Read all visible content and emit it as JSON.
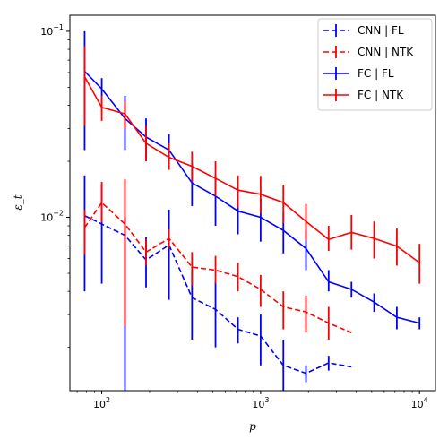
{
  "chart_data": {
    "type": "line",
    "xscale": "log",
    "yscale": "log",
    "xlabel": "p",
    "ylabel": "ε_t",
    "xlim": [
      63,
      12600
    ],
    "ylim": [
      0.00117,
      0.122
    ],
    "x_major_ticks": [
      {
        "value": 100,
        "base": "10",
        "exp": "2"
      },
      {
        "value": 1000,
        "base": "10",
        "exp": "3"
      },
      {
        "value": 10000,
        "base": "10",
        "exp": "4"
      }
    ],
    "y_major_ticks": [
      {
        "value": 0.01,
        "base": "10",
        "exp": "−2"
      },
      {
        "value": 0.1,
        "base": "10",
        "exp": "−1"
      }
    ],
    "legend_position": "top-right",
    "grid": false,
    "series": [
      {
        "name": "CNN | FL",
        "color": "#0000ff",
        "dash": true,
        "x": [
          78,
          100,
          140,
          190,
          265,
          370,
          520,
          720,
          1000,
          1390,
          1930,
          2680,
          3730
        ],
        "y": [
          0.0102,
          0.0092,
          0.008,
          0.0059,
          0.0071,
          0.0037,
          0.0032,
          0.0025,
          0.0023,
          0.0016,
          0.00145,
          0.00165,
          0.00157
        ],
        "err_lo": [
          0.004,
          0.0044,
          0.00115,
          0.0042,
          0.0036,
          0.0022,
          0.002,
          0.0021,
          0.0016,
          0.00117,
          0.0013,
          0.0015,
          null
        ],
        "err_hi": [
          0.0168,
          0.015,
          0.01,
          0.0078,
          0.011,
          0.0052,
          0.0045,
          0.0029,
          0.003,
          0.0022,
          0.0016,
          0.0018,
          null
        ]
      },
      {
        "name": "CNN | NTK",
        "color": "#ff0000",
        "dash": true,
        "x": [
          78,
          100,
          140,
          190,
          265,
          370,
          520,
          720,
          1000,
          1390,
          1930,
          2680,
          3730
        ],
        "y": [
          0.0088,
          0.012,
          0.0092,
          0.0065,
          0.0077,
          0.0054,
          0.0052,
          0.0048,
          0.0041,
          0.0033,
          0.0031,
          0.0027,
          0.0024
        ],
        "err_lo": [
          0.0063,
          0.0094,
          0.0026,
          0.0055,
          0.0068,
          0.0043,
          0.0044,
          0.004,
          0.0033,
          0.0025,
          0.0024,
          0.0022,
          null
        ],
        "err_hi": [
          0.011,
          0.0155,
          0.016,
          0.0076,
          0.0086,
          0.0065,
          0.0062,
          0.0057,
          0.0049,
          0.004,
          0.0038,
          0.0033,
          null
        ]
      },
      {
        "name": "FC | FL",
        "color": "#0000ff",
        "dash": false,
        "x": [
          78,
          100,
          140,
          190,
          265,
          370,
          520,
          720,
          1000,
          1390,
          1930,
          2680,
          3730,
          5180,
          7200,
          10000
        ],
        "y": [
          0.061,
          0.049,
          0.034,
          0.027,
          0.023,
          0.0153,
          0.013,
          0.0108,
          0.01,
          0.0085,
          0.0068,
          0.0045,
          0.0041,
          0.0035,
          0.0029,
          0.0027
        ],
        "err_lo": [
          0.023,
          0.041,
          0.023,
          0.02,
          0.018,
          0.0115,
          0.009,
          0.0081,
          0.0074,
          0.0064,
          0.0052,
          0.004,
          0.0037,
          0.0031,
          0.0025,
          0.0025
        ],
        "err_hi": [
          0.1,
          0.056,
          0.045,
          0.034,
          0.028,
          0.0195,
          0.017,
          0.0135,
          0.0126,
          0.0106,
          0.0085,
          0.0052,
          0.0045,
          0.0039,
          0.0033,
          0.0029
        ]
      },
      {
        "name": "FC | NTK",
        "color": "#ff0000",
        "dash": false,
        "x": [
          78,
          100,
          140,
          190,
          265,
          370,
          520,
          720,
          1000,
          1390,
          1930,
          2680,
          3730,
          5180,
          7200,
          10000
        ],
        "y": [
          0.057,
          0.039,
          0.036,
          0.025,
          0.021,
          0.0188,
          0.0162,
          0.014,
          0.0133,
          0.012,
          0.0095,
          0.0076,
          0.0083,
          0.0077,
          0.007,
          0.0057
        ],
        "err_lo": [
          0.031,
          0.033,
          0.03,
          0.02,
          0.018,
          0.0155,
          0.013,
          0.0113,
          0.0105,
          0.0093,
          0.0075,
          0.0066,
          0.0067,
          0.006,
          0.0055,
          0.0044
        ],
        "err_hi": [
          0.083,
          0.045,
          0.042,
          0.031,
          0.025,
          0.0225,
          0.02,
          0.0168,
          0.0167,
          0.015,
          0.0118,
          0.009,
          0.0103,
          0.0095,
          0.0087,
          0.0072
        ]
      }
    ]
  }
}
